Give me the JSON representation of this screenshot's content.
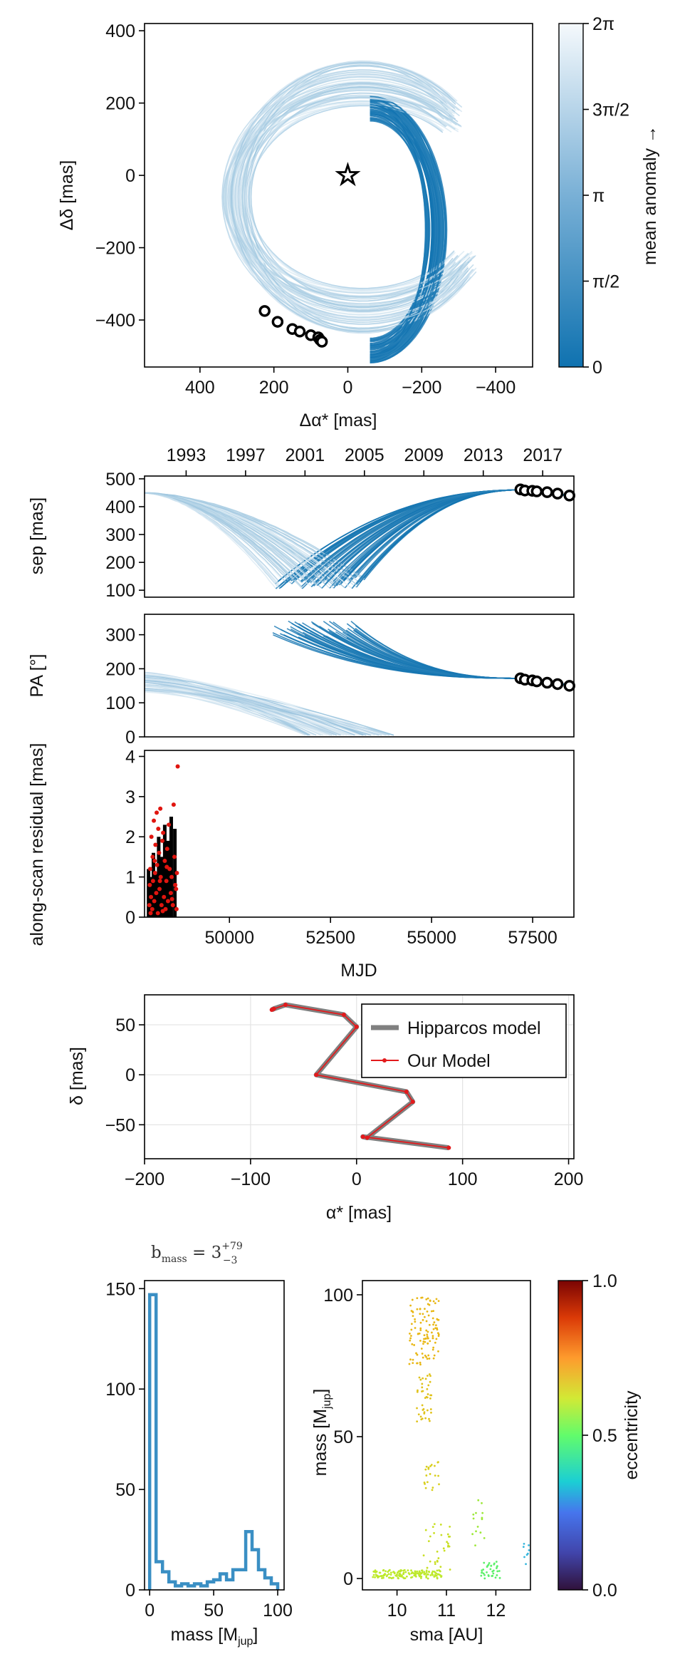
{
  "colors": {
    "orbit_dark": "#2681b9",
    "orbit_light": "#e3eef7",
    "epoch_marker": "#000000",
    "hist": "#3a8fc4",
    "residual_points": "#e0150f",
    "model_line": "#808080",
    "our_model": "#e31a1c"
  },
  "chart_data": [
    {
      "id": "sky",
      "type": "line",
      "title": "",
      "xlabel": "Δα* [mas]",
      "ylabel": "Δδ [mas]",
      "xlim": [
        550,
        -500
      ],
      "ylim": [
        -530,
        420
      ],
      "xticks": [
        400,
        200,
        0,
        -200,
        -400
      ],
      "xtick_labels": [
        "400",
        "200",
        "0",
        "−200",
        "−400"
      ],
      "yticks": [
        400,
        200,
        0,
        -200,
        -400
      ],
      "ytick_labels": [
        "400",
        "200",
        "0",
        "−200",
        "−400"
      ],
      "star": [
        0,
        0
      ],
      "epochs": [
        [
          225,
          -375
        ],
        [
          190,
          -405
        ],
        [
          150,
          -425
        ],
        [
          130,
          -432
        ],
        [
          100,
          -442
        ],
        [
          80,
          -448
        ],
        [
          75,
          -455
        ],
        [
          70,
          -460
        ]
      ],
      "colorbar": {
        "label": "mean anomaly →",
        "tick_labels": [
          "0",
          "π/2",
          "π",
          "3π/2",
          "2π"
        ],
        "ticks": [
          0,
          1.5708,
          3.1416,
          4.7124,
          6.2832
        ]
      }
    },
    {
      "id": "sep",
      "type": "line",
      "ylabel": "sep [mas]",
      "xlim": [
        1990.2,
        2019.1
      ],
      "ylim": [
        75,
        510
      ],
      "yticks": [
        100,
        200,
        300,
        400,
        500
      ],
      "ytick_labels": [
        "100",
        "200",
        "300",
        "400",
        "500"
      ],
      "top_axis_ticks": [
        1993,
        1997,
        2001,
        2005,
        2009,
        2013,
        2017
      ],
      "top_axis_labels": [
        "1993",
        "1997",
        "2001",
        "2005",
        "2009",
        "2013",
        "2017"
      ],
      "epochs": [
        [
          2015.5,
          462
        ],
        [
          2015.8,
          458
        ],
        [
          2016.3,
          457
        ],
        [
          2016.6,
          455
        ],
        [
          2017.3,
          452
        ],
        [
          2018.0,
          447
        ],
        [
          2018.8,
          440
        ]
      ]
    },
    {
      "id": "pa",
      "type": "line",
      "ylabel": "PA [°]",
      "xlim": [
        1990.2,
        2019.1
      ],
      "ylim": [
        0,
        360
      ],
      "yticks": [
        0,
        100,
        200,
        300
      ],
      "ytick_labels": [
        "0",
        "100",
        "200",
        "300"
      ],
      "epochs": [
        [
          2015.5,
          172
        ],
        [
          2015.8,
          168
        ],
        [
          2016.3,
          166
        ],
        [
          2016.6,
          163
        ],
        [
          2017.3,
          159
        ],
        [
          2018.0,
          155
        ],
        [
          2018.8,
          150
        ]
      ]
    },
    {
      "id": "residuals",
      "type": "scatter",
      "ylabel": "along-scan residual [mas]",
      "xlabel": "MJD",
      "xlim": [
        47900,
        58520
      ],
      "ylim": [
        0,
        4.15
      ],
      "xticks": [
        50000,
        52500,
        55000,
        57500
      ],
      "xtick_labels": [
        "50000",
        "52500",
        "55000",
        "57500"
      ],
      "yticks": [
        0,
        1,
        2,
        3,
        4
      ],
      "ytick_labels": [
        "0",
        "1",
        "2",
        "3",
        "4"
      ],
      "bars": [
        [
          48000,
          1.2
        ],
        [
          48050,
          1.0
        ],
        [
          48120,
          1.6
        ],
        [
          48180,
          1.1
        ],
        [
          48250,
          2.0
        ],
        [
          48320,
          1.5
        ],
        [
          48400,
          2.3
        ],
        [
          48480,
          1.9
        ],
        [
          48560,
          2.5
        ],
        [
          48650,
          2.2
        ]
      ],
      "points": [
        [
          48020,
          0.3
        ],
        [
          48030,
          0.8
        ],
        [
          48040,
          1.2
        ],
        [
          48060,
          0.5
        ],
        [
          48070,
          2.0
        ],
        [
          48090,
          0.2
        ],
        [
          48100,
          1.5
        ],
        [
          48110,
          0.9
        ],
        [
          48130,
          2.4
        ],
        [
          48140,
          0.4
        ],
        [
          48160,
          1.1
        ],
        [
          48170,
          1.8
        ],
        [
          48190,
          0.6
        ],
        [
          48200,
          2.6
        ],
        [
          48210,
          1.3
        ],
        [
          48230,
          0.1
        ],
        [
          48240,
          2.2
        ],
        [
          48260,
          1.6
        ],
        [
          48270,
          0.7
        ],
        [
          48290,
          2.7
        ],
        [
          48300,
          1.0
        ],
        [
          48320,
          0.3
        ],
        [
          48340,
          1.9
        ],
        [
          48360,
          2.1
        ],
        [
          48380,
          0.5
        ],
        [
          48400,
          1.4
        ],
        [
          48420,
          0.2
        ],
        [
          48440,
          0.9
        ],
        [
          48460,
          1.7
        ],
        [
          48480,
          0.4
        ],
        [
          48500,
          2.3
        ],
        [
          48520,
          1.2
        ],
        [
          48550,
          0.6
        ],
        [
          48570,
          1.0
        ],
        [
          48600,
          0.3
        ],
        [
          48620,
          2.8
        ],
        [
          48640,
          1.5
        ],
        [
          48660,
          0.8
        ],
        [
          48690,
          0.2
        ],
        [
          48720,
          3.75
        ],
        [
          48700,
          1.1
        ],
        [
          48050,
          0.1
        ],
        [
          48150,
          1.4
        ],
        [
          48280,
          0.9
        ],
        [
          48350,
          0.15
        ],
        [
          48450,
          1.25
        ],
        [
          48580,
          0.45
        ],
        [
          48680,
          0.7
        ]
      ]
    },
    {
      "id": "hipparcos",
      "type": "line",
      "xlabel": "α* [mas]",
      "ylabel": "δ [mas]",
      "xlim": [
        -200,
        205
      ],
      "ylim": [
        -84,
        80
      ],
      "xticks": [
        -200,
        -100,
        0,
        100,
        200
      ],
      "xtick_labels": [
        "−200",
        "−100",
        "0",
        "100",
        "200"
      ],
      "yticks": [
        50,
        0,
        -50
      ],
      "ytick_labels": [
        "50",
        "0",
        "−50"
      ],
      "legend": [
        "Hipparcos model",
        "Our Model"
      ],
      "series": [
        {
          "name": "Our Model",
          "x": [
            -80,
            -78,
            -67,
            -12,
            0,
            -38,
            47,
            53,
            10,
            6,
            87
          ],
          "y": [
            65,
            66,
            70,
            60,
            48,
            0,
            -17,
            -27,
            -63,
            -62,
            -73
          ]
        }
      ]
    },
    {
      "id": "mass_hist",
      "type": "bar",
      "title": "b_mass = 3 +79 −3",
      "title_base": "b",
      "title_sub": "mass",
      "title_mid": " = 3",
      "title_sup": "+79",
      "title_sub2": "−3",
      "xlabel": "mass [M_jup]",
      "xlabel_main": "mass [M",
      "xlabel_sub": "jup",
      "xlabel_close": "]",
      "xlim": [
        -4,
        105
      ],
      "ylim": [
        0,
        154
      ],
      "xticks": [
        0,
        50,
        100
      ],
      "xtick_labels": [
        "0",
        "50",
        "100"
      ],
      "yticks": [
        0,
        50,
        100,
        150
      ],
      "ytick_labels": [
        "0",
        "50",
        "100",
        "150"
      ],
      "bin_edges": [
        0,
        5,
        10,
        15,
        20,
        25,
        30,
        35,
        40,
        45,
        50,
        55,
        60,
        65,
        70,
        75,
        80,
        85,
        90,
        95,
        100
      ],
      "values": [
        147,
        14,
        9,
        4,
        2,
        3,
        2,
        3,
        2,
        4,
        5,
        8,
        5,
        10,
        10,
        29,
        20,
        10,
        6,
        3
      ]
    },
    {
      "id": "mass_sma",
      "type": "scatter",
      "xlabel": "sma [AU]",
      "ylabel_main": "mass [M",
      "ylabel_sub": "jup",
      "ylabel_close": "]",
      "xlim": [
        9.3,
        12.7
      ],
      "ylim": [
        -4,
        105
      ],
      "xticks": [
        10,
        11,
        12
      ],
      "xtick_labels": [
        "10",
        "11",
        "12"
      ],
      "yticks": [
        0,
        50,
        100
      ],
      "ytick_labels": [
        "0",
        "50",
        "100"
      ],
      "colorbar": {
        "label": "eccentricity",
        "ticks": [
          0.0,
          0.5,
          1.0
        ],
        "tick_labels": [
          "0.0",
          "0.5",
          "1.0"
        ]
      }
    }
  ]
}
